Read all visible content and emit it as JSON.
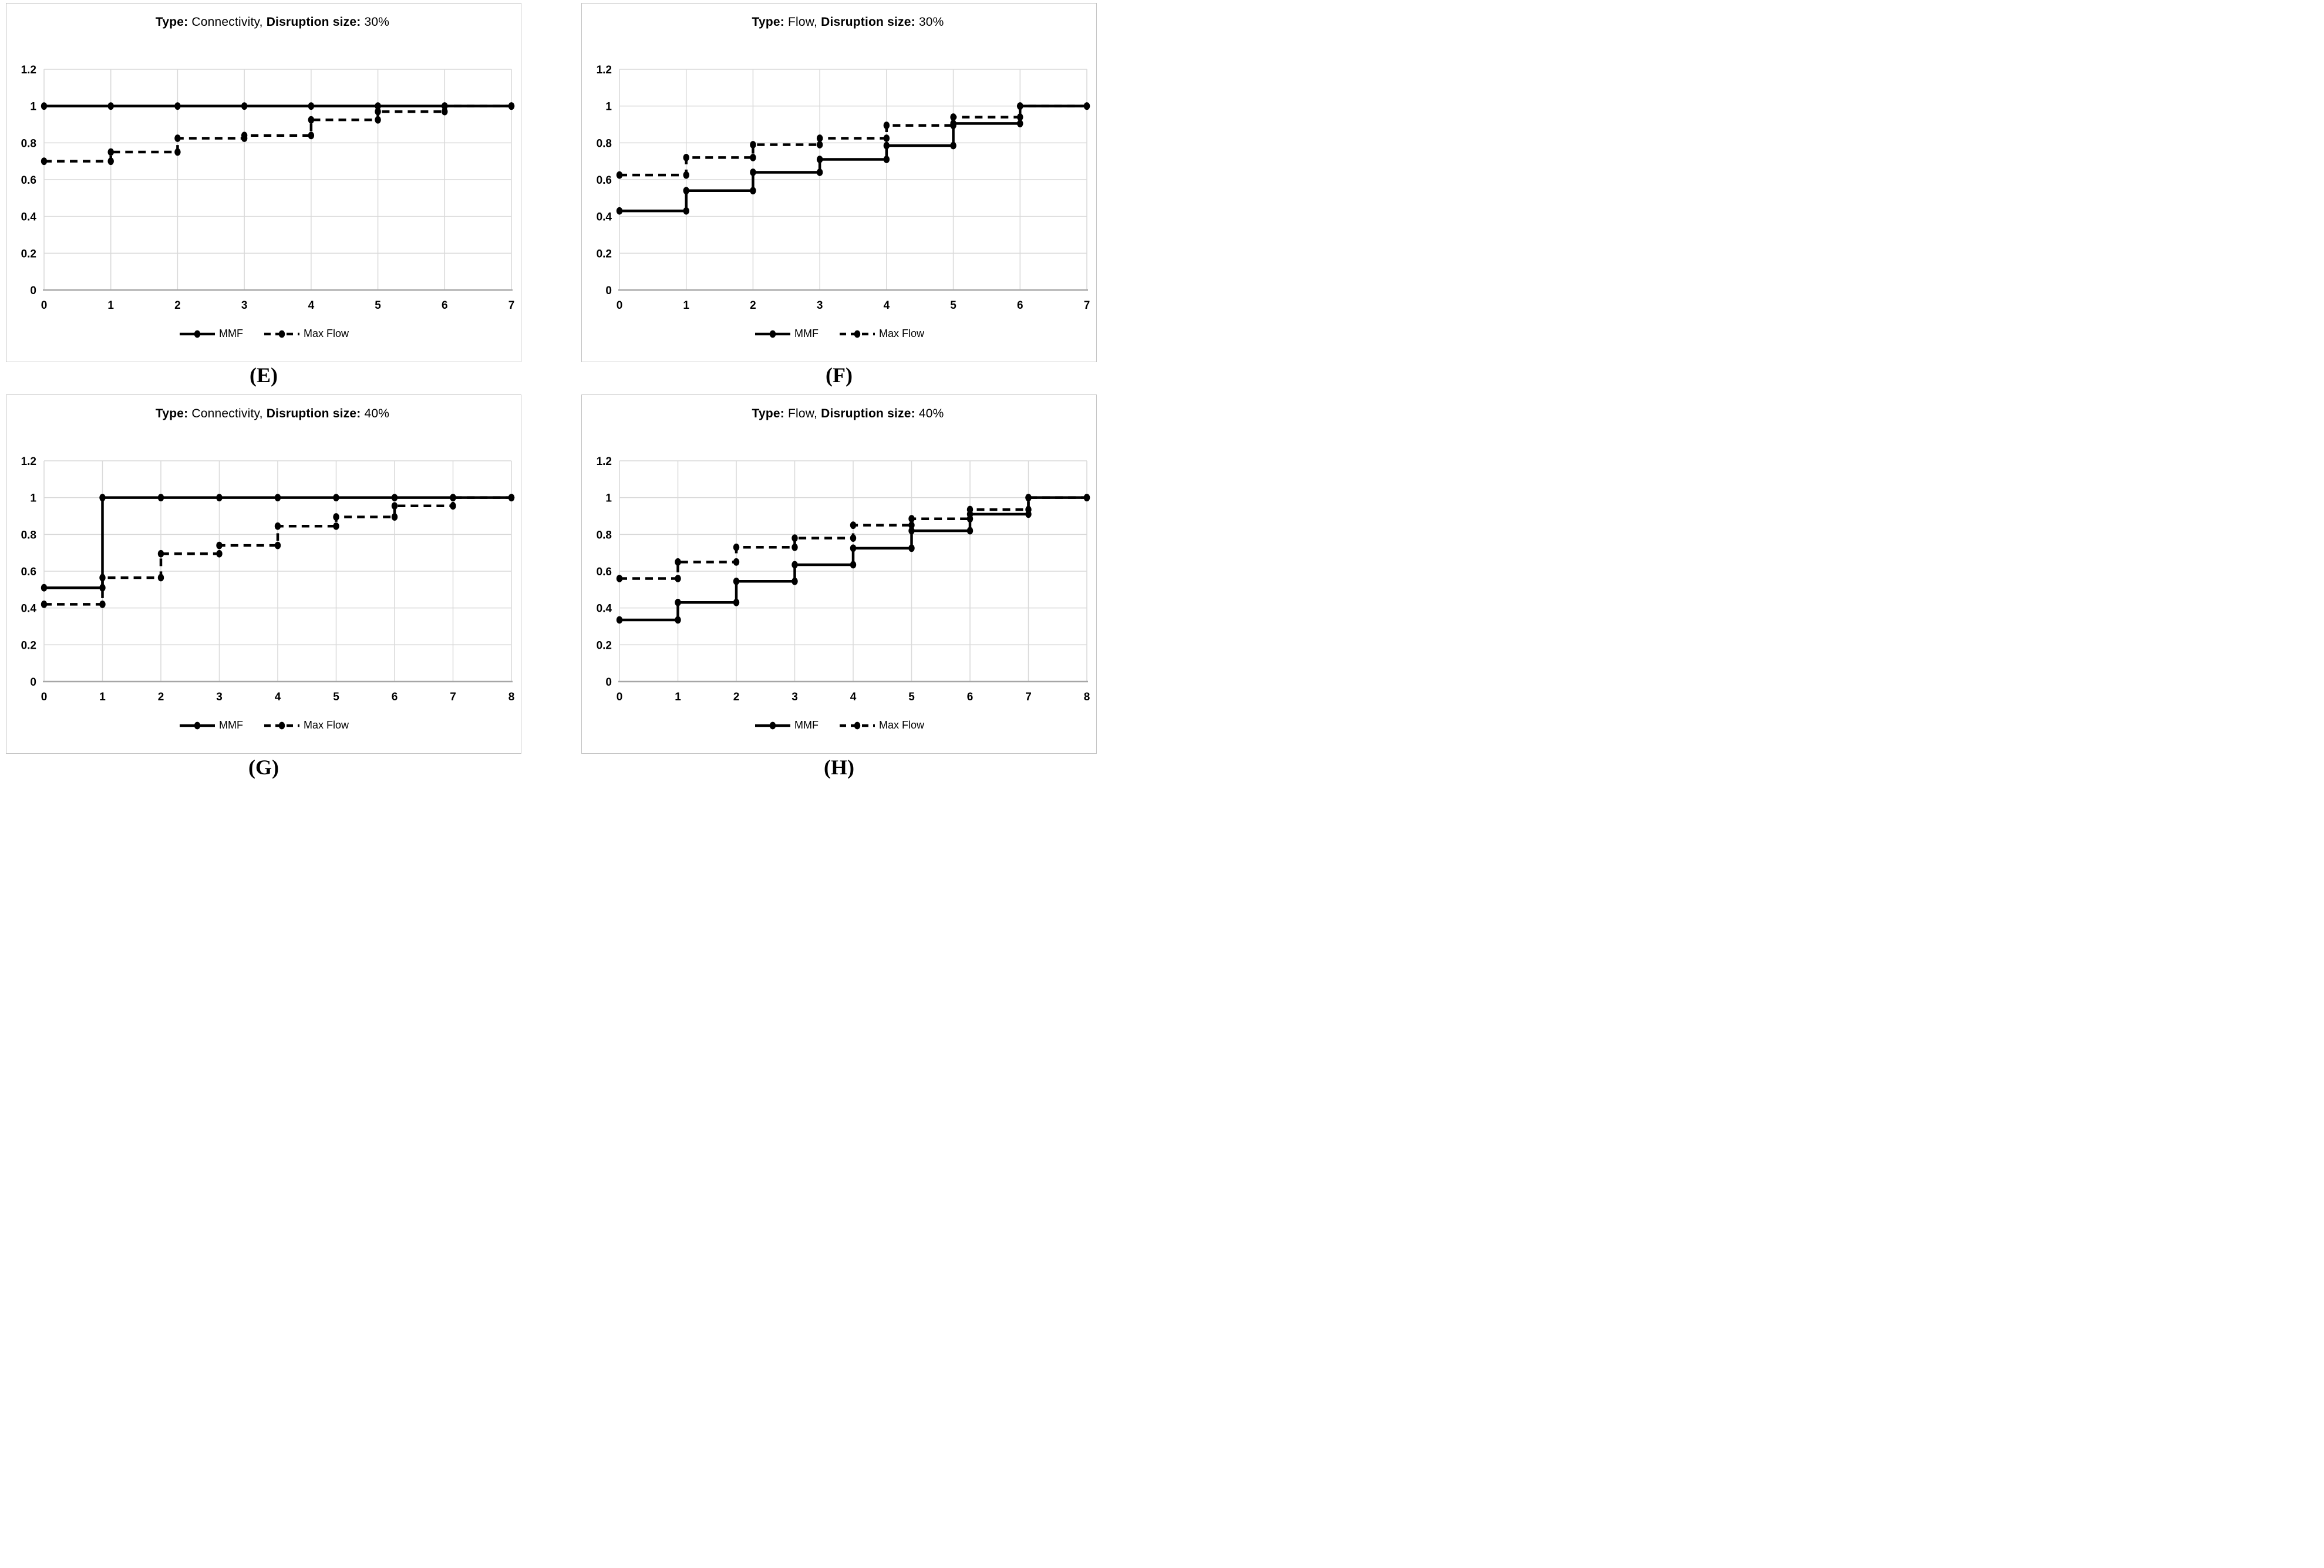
{
  "figure": {
    "description": "Four step-line resilience charts comparing MMF and Max Flow under different disruption types and sizes"
  },
  "styles": {
    "series_color": "#000000",
    "gridline_color": "#d9d9d9",
    "axis_color": "#a6a6a6",
    "panel_border_color": "#c3c3c3",
    "background": "#ffffff"
  },
  "chart_data": [
    {
      "id": "E",
      "panel_label": "(E)",
      "type": "line",
      "step": "after",
      "title_text": "Type: Connectivity, Disruption size: 30%",
      "title_parts": [
        {
          "text": "Type: ",
          "bold": true
        },
        {
          "text": "Connectivity, ",
          "bold": false
        },
        {
          "text": "Disruption size: ",
          "bold": true
        },
        {
          "text": "30%",
          "bold": false
        }
      ],
      "x": [
        0,
        1,
        2,
        3,
        4,
        5,
        6,
        7
      ],
      "xlim": [
        0,
        7
      ],
      "ylim": [
        0,
        1.2
      ],
      "y_ticks": [
        0,
        0.2,
        0.4,
        0.6,
        0.8,
        1,
        1.2
      ],
      "y_tick_labels": [
        "0",
        "0.2",
        "0.4",
        "0.6",
        "0.8",
        "1",
        "1.2"
      ],
      "grid": true,
      "legend_position": "bottom",
      "series": [
        {
          "name": "MMF",
          "line_style": "solid",
          "marker": "circle",
          "values": [
            1,
            1,
            1,
            1,
            1,
            1,
            1,
            1
          ]
        },
        {
          "name": "Max Flow",
          "line_style": "dashed",
          "marker": "circle",
          "values": [
            0.7,
            0.75,
            0.825,
            0.84,
            0.925,
            0.97,
            1.0,
            1.0
          ]
        }
      ]
    },
    {
      "id": "F",
      "panel_label": "(F)",
      "type": "line",
      "step": "after",
      "title_text": "Type: Flow, Disruption size: 30%",
      "title_parts": [
        {
          "text": "Type: ",
          "bold": true
        },
        {
          "text": "Flow, ",
          "bold": false
        },
        {
          "text": "Disruption size: ",
          "bold": true
        },
        {
          "text": "30%",
          "bold": false
        }
      ],
      "x": [
        0,
        1,
        2,
        3,
        4,
        5,
        6,
        7
      ],
      "xlim": [
        0,
        7
      ],
      "ylim": [
        0,
        1.2
      ],
      "y_ticks": [
        0,
        0.2,
        0.4,
        0.6,
        0.8,
        1,
        1.2
      ],
      "y_tick_labels": [
        "0",
        "0.2",
        "0.4",
        "0.6",
        "0.8",
        "1",
        "1.2"
      ],
      "grid": true,
      "legend_position": "bottom",
      "series": [
        {
          "name": "MMF",
          "line_style": "solid",
          "marker": "circle",
          "values": [
            0.43,
            0.54,
            0.64,
            0.71,
            0.785,
            0.905,
            1.0,
            1.0
          ]
        },
        {
          "name": "Max Flow",
          "line_style": "dashed",
          "marker": "circle",
          "values": [
            0.625,
            0.72,
            0.79,
            0.825,
            0.895,
            0.94,
            1.0,
            1.0
          ]
        }
      ]
    },
    {
      "id": "G",
      "panel_label": "(G)",
      "type": "line",
      "step": "after",
      "title_text": "Type: Connectivity, Disruption size: 40%",
      "title_parts": [
        {
          "text": "Type: ",
          "bold": true
        },
        {
          "text": "Connectivity, ",
          "bold": false
        },
        {
          "text": "Disruption size: ",
          "bold": true
        },
        {
          "text": "40%",
          "bold": false
        }
      ],
      "x": [
        0,
        1,
        2,
        3,
        4,
        5,
        6,
        7,
        8
      ],
      "xlim": [
        0,
        8
      ],
      "ylim": [
        0,
        1.2
      ],
      "y_ticks": [
        0,
        0.2,
        0.4,
        0.6,
        0.8,
        1,
        1.2
      ],
      "y_tick_labels": [
        "0",
        "0.2",
        "0.4",
        "0.6",
        "0.8",
        "1",
        "1.2"
      ],
      "grid": true,
      "legend_position": "bottom",
      "series": [
        {
          "name": "MMF",
          "line_style": "solid",
          "marker": "circle",
          "values": [
            0.51,
            1,
            1,
            1,
            1,
            1,
            1,
            1,
            1
          ]
        },
        {
          "name": "Max Flow",
          "line_style": "dashed",
          "marker": "circle",
          "values": [
            0.42,
            0.565,
            0.695,
            0.74,
            0.845,
            0.895,
            0.955,
            1.0,
            1.0
          ]
        }
      ]
    },
    {
      "id": "H",
      "panel_label": "(H)",
      "type": "line",
      "step": "after",
      "title_text": "Type: Flow, Disruption size: 40%",
      "title_parts": [
        {
          "text": "Type: ",
          "bold": true
        },
        {
          "text": "Flow, ",
          "bold": false
        },
        {
          "text": "Disruption size: ",
          "bold": true
        },
        {
          "text": "40%",
          "bold": false
        }
      ],
      "x": [
        0,
        1,
        2,
        3,
        4,
        5,
        6,
        7,
        8
      ],
      "xlim": [
        0,
        8
      ],
      "ylim": [
        0,
        1.2
      ],
      "y_ticks": [
        0,
        0.2,
        0.4,
        0.6,
        0.8,
        1,
        1.2
      ],
      "y_tick_labels": [
        "0",
        "0.2",
        "0.4",
        "0.6",
        "0.8",
        "1",
        "1.2"
      ],
      "grid": true,
      "legend_position": "bottom",
      "series": [
        {
          "name": "MMF",
          "line_style": "solid",
          "marker": "circle",
          "values": [
            0.335,
            0.43,
            0.545,
            0.635,
            0.725,
            0.82,
            0.91,
            1.0,
            1.0
          ]
        },
        {
          "name": "Max Flow",
          "line_style": "dashed",
          "marker": "circle",
          "values": [
            0.56,
            0.65,
            0.73,
            0.78,
            0.85,
            0.885,
            0.935,
            1.0,
            1.0
          ]
        }
      ]
    }
  ]
}
